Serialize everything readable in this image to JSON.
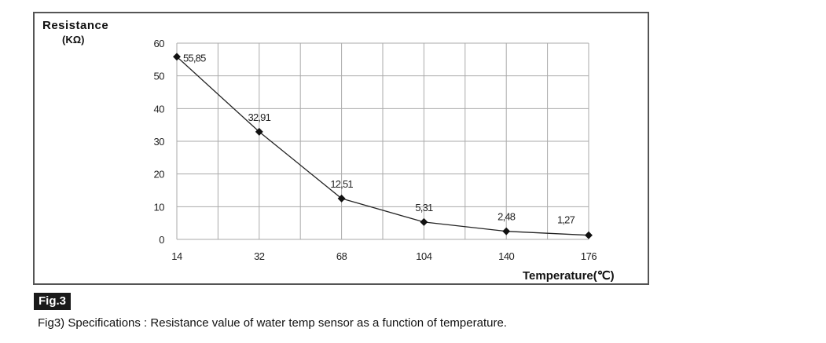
{
  "chart_data": {
    "type": "line",
    "ylabel": "Resistance",
    "yunit": "(KΩ)",
    "xlabel": "Temperature(℃)",
    "categories": [
      "14",
      "32",
      "68",
      "104",
      "140",
      "176"
    ],
    "x": [
      14,
      32,
      68,
      104,
      140,
      176
    ],
    "yticks": [
      0,
      10,
      20,
      30,
      40,
      50,
      60
    ],
    "ylim": [
      0,
      60
    ],
    "grid": true,
    "series": [
      {
        "values": [
          55.85,
          32.91,
          12.51,
          5.31,
          2.48,
          1.27
        ],
        "labels": [
          "55,85",
          "32,91",
          "12,51",
          "5,31",
          "2,48",
          "1,27"
        ]
      }
    ]
  },
  "figure": {
    "badge": "Fig.3",
    "caption": "Fig3) Specifications : Resistance value of water temp sensor as a function of temperature."
  }
}
